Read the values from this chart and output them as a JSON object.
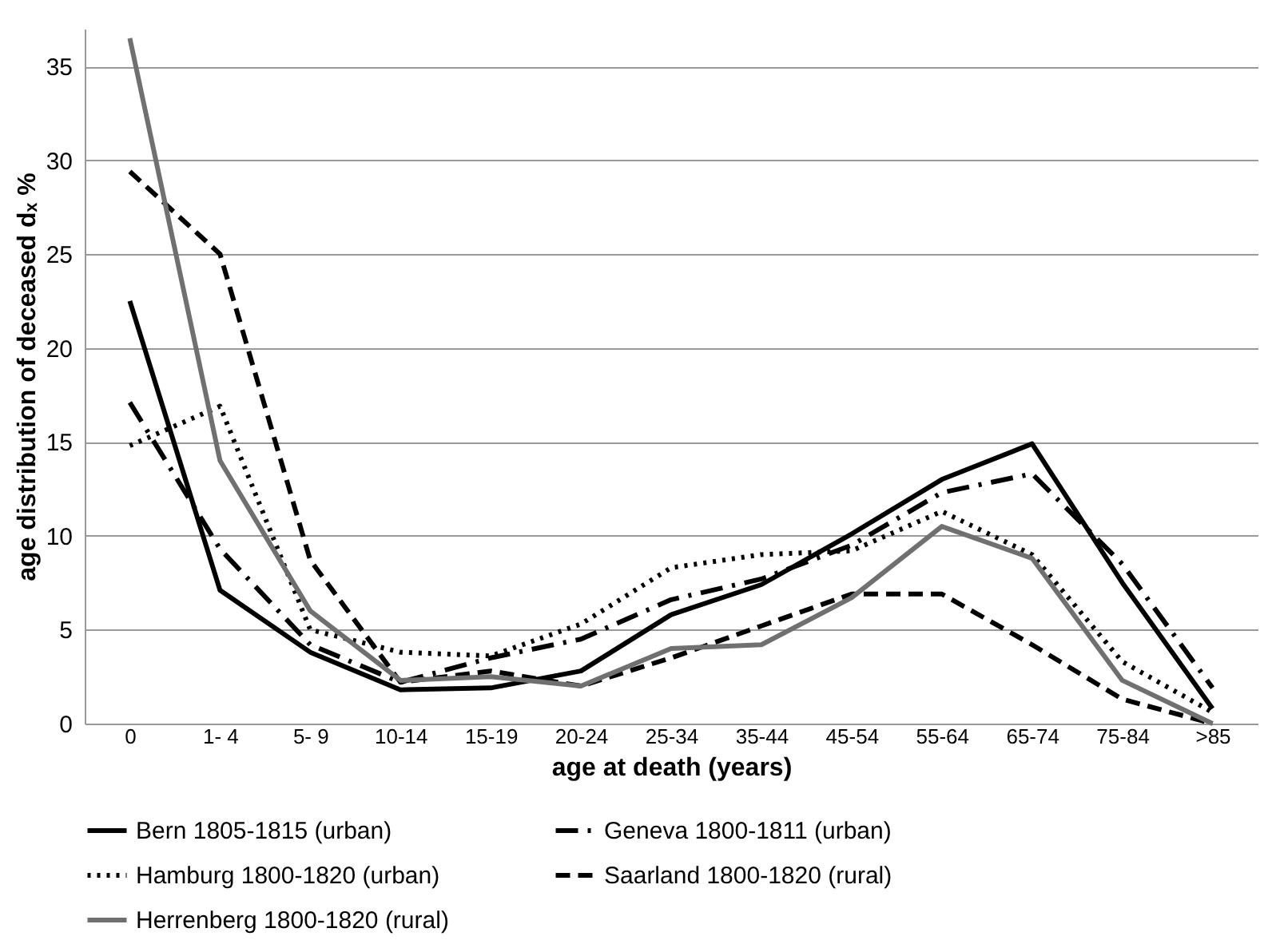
{
  "chart_data": {
    "type": "line",
    "xlabel": "age at death (years)",
    "ylabel": "age distribution of deceased dₓ %",
    "categories": [
      "0",
      "1- 4",
      "5- 9",
      "10-14",
      "15-19",
      "20-24",
      "25-34",
      "35-44",
      "45-54",
      "55-64",
      "65-74",
      "75-84",
      ">85"
    ],
    "series": [
      {
        "name": "Bern 1805-1815 (urban)",
        "color": "#000000",
        "line_style": "solid",
        "values": [
          22.5,
          7.1,
          3.8,
          1.8,
          1.9,
          2.8,
          5.8,
          7.4,
          10.1,
          13.0,
          14.9,
          7.5,
          0.8
        ]
      },
      {
        "name": "Geneva 1800-1811 (urban)",
        "color": "#000000",
        "line_style": "dashdot",
        "values": [
          17.1,
          9.3,
          4.2,
          2.2,
          3.5,
          4.5,
          6.6,
          7.7,
          9.5,
          12.3,
          13.3,
          8.5,
          1.9
        ]
      },
      {
        "name": "Hamburg 1800-1820 (urban)",
        "color": "#000000",
        "line_style": "dotted",
        "values": [
          14.8,
          16.9,
          5.0,
          3.8,
          3.6,
          5.3,
          8.3,
          9.0,
          9.2,
          11.3,
          9.0,
          3.3,
          0.6
        ]
      },
      {
        "name": "Saarland 1800-1820 (rural)",
        "color": "#000000",
        "line_style": "dashed",
        "values": [
          29.4,
          25.0,
          8.7,
          2.2,
          2.8,
          2.0,
          3.5,
          5.2,
          6.9,
          6.9,
          4.2,
          1.3,
          0
        ]
      },
      {
        "name": "Herrenberg 1800-1820 (rural)",
        "color": "#707070",
        "line_style": "solid",
        "values": [
          36.5,
          14.0,
          6.0,
          2.3,
          2.5,
          2.0,
          4.0,
          4.2,
          6.7,
          10.5,
          8.8,
          2.3,
          0
        ]
      }
    ],
    "ylim": [
      0,
      37
    ],
    "yticks": [
      0,
      5,
      10,
      15,
      20,
      25,
      30,
      35
    ],
    "grid": "y",
    "legend": "bottom",
    "marker": "none"
  }
}
